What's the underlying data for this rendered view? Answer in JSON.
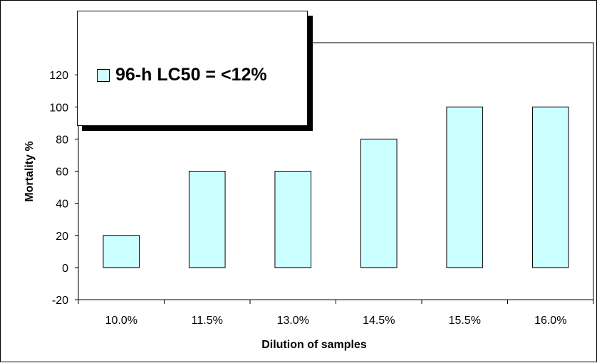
{
  "chart_data": {
    "type": "bar",
    "categories": [
      "10.0%",
      "11.5%",
      "13.0%",
      "14.5%",
      "15.5%",
      "16.0%"
    ],
    "series": [
      {
        "name": "96-h LC50 = <12%",
        "values": [
          20,
          60,
          60,
          80,
          100,
          100
        ],
        "color": "#ccffff"
      }
    ],
    "xlabel": "Dilution of samples",
    "ylabel": "Mortality %",
    "ylim": [
      -20,
      140
    ],
    "yticks": [
      -20,
      0,
      20,
      40,
      60,
      80,
      100,
      120
    ],
    "grid": false,
    "legend_position": "top-left"
  }
}
